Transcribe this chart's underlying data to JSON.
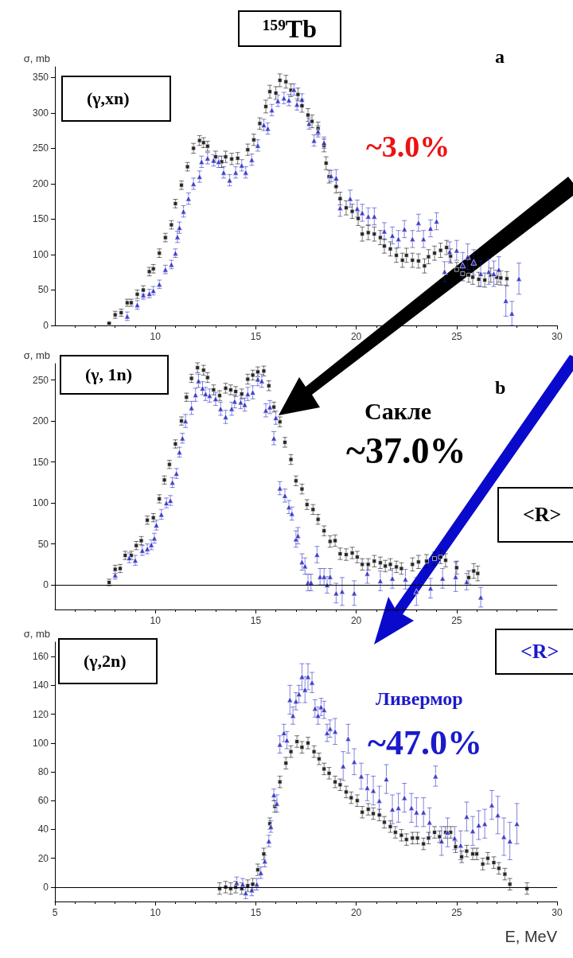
{
  "chart_data": [
    {
      "type": "scatter",
      "title": "¹⁵⁹Tb",
      "ylabel": "σ, mb",
      "xlim": [
        5,
        30
      ],
      "xticks": [
        10,
        15,
        20,
        25,
        30
      ],
      "ylim": [
        0,
        365
      ],
      "yticks": [
        0,
        50,
        100,
        150,
        200,
        250,
        300,
        350
      ],
      "annotations": [
        "(γ,xn)",
        "~3.0%",
        "a"
      ],
      "series": [
        {
          "color": "#000000",
          "marker": "square",
          "x": [
            7.7,
            8.0,
            8.3,
            8.6,
            8.8,
            9.1,
            9.4,
            9.7,
            9.9,
            10.2,
            10.5,
            10.8,
            11.0,
            11.3,
            11.6,
            11.9,
            12.2,
            12.4,
            12.6,
            13.0,
            13.3,
            13.5,
            13.8,
            14.1,
            14.6,
            14.9,
            15.2,
            15.5,
            15.7,
            16.0,
            16.2,
            16.5,
            16.75,
            17.1,
            17.3,
            17.6,
            17.8,
            18.1,
            18.4,
            18.5,
            18.65,
            19.0,
            19.2,
            19.5,
            19.8,
            20.1,
            20.3,
            20.6,
            20.9,
            21.2,
            21.4,
            21.7,
            22.0,
            22.3,
            22.5,
            22.8,
            23.1,
            23.4,
            23.6,
            23.9,
            24.2,
            24.5,
            24.7,
            25.0,
            25.3,
            25.6,
            25.8,
            26.1,
            26.4,
            26.7,
            27.0,
            27.2,
            27.5
          ],
          "values": [
            3,
            15,
            18,
            32,
            32,
            44,
            50,
            76,
            80,
            102,
            124,
            142,
            172,
            198,
            224,
            250,
            261,
            258,
            253,
            238,
            231,
            238,
            235,
            236,
            248,
            262,
            285,
            309,
            330,
            328,
            346,
            344,
            332,
            326,
            310,
            297,
            288,
            278,
            254,
            229,
            210,
            196,
            179,
            166,
            161,
            151,
            129,
            131,
            129,
            124,
            112,
            108,
            99,
            92,
            99,
            92,
            91,
            84,
            97,
            102,
            106,
            110,
            98,
            79,
            73,
            71,
            68,
            65,
            64,
            71,
            68,
            67,
            66
          ],
          "errors": [
            null,
            5,
            5,
            5,
            5,
            6,
            6,
            6,
            6,
            6,
            6,
            6,
            6,
            6,
            6,
            7,
            7,
            7,
            7,
            8,
            8,
            8,
            8,
            8,
            8,
            8,
            8,
            9,
            9,
            9,
            9,
            9,
            9,
            9,
            9,
            9,
            9,
            9,
            9,
            9,
            9,
            9,
            9,
            10,
            10,
            10,
            10,
            10,
            10,
            10,
            10,
            10,
            10,
            10,
            10,
            10,
            10,
            10,
            10,
            10,
            10,
            10,
            10,
            10,
            10,
            10,
            10,
            10,
            10,
            10,
            10,
            10,
            10
          ]
        },
        {
          "color": "#1f1fbf",
          "marker": "triangle",
          "x": [
            8.6,
            9.1,
            9.4,
            9.7,
            9.9,
            10.2,
            10.5,
            10.8,
            11.0,
            11.1,
            11.2,
            11.4,
            11.65,
            11.9,
            12.2,
            12.3,
            12.6,
            12.9,
            13.15,
            13.4,
            13.7,
            14.0,
            14.3,
            14.5,
            14.8,
            15.1,
            15.4,
            15.6,
            15.8,
            16.1,
            16.4,
            16.65,
            16.9,
            17.05,
            17.3,
            17.65,
            17.9,
            18.1,
            18.4,
            18.75,
            19.0,
            19.2,
            19.7,
            20.05,
            20.3,
            20.6,
            20.9,
            21.4,
            21.8,
            22.1,
            22.4,
            22.8,
            23.1,
            23.35,
            23.7,
            24.0,
            24.4,
            24.65,
            25.0,
            25.3,
            25.55,
            25.85,
            26.2,
            26.6,
            26.85,
            27.1,
            27.45,
            27.75,
            28.1
          ],
          "values": [
            13,
            29,
            43,
            45,
            49,
            58,
            79,
            86,
            102,
            125,
            138,
            161,
            179,
            200,
            210,
            231,
            236,
            233,
            231,
            216,
            205,
            216,
            226,
            216,
            234,
            254,
            283,
            278,
            304,
            317,
            321,
            318,
            333,
            312,
            319,
            285,
            261,
            274,
            258,
            211,
            208,
            166,
            179,
            165,
            159,
            154,
            154,
            133,
            127,
            122,
            136,
            122,
            145,
            122,
            137,
            147,
            76,
            104,
            106,
            85,
            97,
            89,
            73,
            76,
            73,
            79,
            35,
            17,
            66
          ],
          "errors": [
            6,
            6,
            6,
            6,
            6,
            6,
            6,
            6,
            6,
            8,
            8,
            8,
            8,
            8,
            8,
            8,
            8,
            8,
            8,
            8,
            8,
            8,
            8,
            8,
            8,
            8,
            8,
            8,
            8,
            8,
            8,
            8,
            8,
            8,
            8,
            8,
            8,
            8,
            8,
            8,
            12,
            12,
            12,
            12,
            12,
            12,
            12,
            12,
            12,
            12,
            12,
            12,
            12,
            12,
            12,
            12,
            14,
            14,
            14,
            18,
            18,
            18,
            18,
            18,
            18,
            18,
            22,
            17,
            22
          ]
        }
      ]
    },
    {
      "type": "scatter",
      "ylabel": "σ, mb",
      "xlim": [
        5,
        30
      ],
      "xticks": [
        10,
        15,
        20,
        25
      ],
      "ylim": [
        -30,
        270
      ],
      "yticks": [
        0,
        50,
        100,
        150,
        200,
        250
      ],
      "annotations": [
        "(γ, 1n)",
        "Сакле",
        "~37.0%",
        "b",
        "<R>"
      ],
      "ref_lines": [
        {
          "axis": "y",
          "value": 0,
          "color": "#000000"
        }
      ],
      "series": [
        {
          "color": "#000000",
          "marker": "square",
          "x": [
            7.7,
            8.0,
            8.25,
            8.5,
            8.8,
            9.05,
            9.3,
            9.6,
            9.9,
            10.2,
            10.45,
            10.7,
            11.0,
            11.3,
            11.55,
            11.8,
            12.1,
            12.4,
            12.6,
            12.9,
            13.2,
            13.5,
            13.75,
            14.0,
            14.3,
            14.6,
            14.85,
            15.1,
            15.4,
            15.65,
            15.9,
            16.2,
            16.45,
            16.75,
            17.0,
            17.3,
            17.55,
            17.85,
            18.1,
            18.4,
            18.7,
            18.95,
            19.2,
            19.5,
            19.8,
            20.05,
            20.3,
            20.6,
            20.9,
            21.2,
            21.45,
            21.7,
            22.0,
            22.25,
            22.8,
            23.1,
            23.5,
            23.9,
            24.2,
            24.45,
            25.0,
            25.6,
            25.85,
            26.05
          ],
          "values": [
            3,
            19,
            20,
            36,
            36,
            48,
            54,
            79,
            82,
            105,
            128,
            147,
            172,
            200,
            229,
            252,
            265,
            262,
            253,
            238,
            231,
            240,
            238,
            236,
            233,
            251,
            256,
            260,
            261,
            243,
            217,
            199,
            174,
            153,
            127,
            117,
            98,
            92,
            80,
            66,
            53,
            54,
            38,
            37,
            39,
            34,
            25,
            25,
            29,
            27,
            23,
            25,
            22,
            20,
            25,
            28,
            29,
            32,
            34,
            30,
            21,
            9,
            17,
            14
          ],
          "errors": [
            4,
            5,
            5,
            5,
            5,
            5,
            5,
            5,
            5,
            5,
            5,
            5,
            5,
            5,
            5,
            5,
            6,
            6,
            6,
            6,
            6,
            6,
            6,
            6,
            6,
            6,
            6,
            6,
            6,
            6,
            6,
            6,
            6,
            6,
            6,
            6,
            6,
            6,
            6,
            6,
            7,
            7,
            7,
            7,
            7,
            7,
            7,
            7,
            7,
            7,
            7,
            7,
            7,
            7,
            8,
            8,
            8,
            8,
            8,
            8,
            8,
            8,
            9,
            9
          ]
        },
        {
          "color": "#1f1fbf",
          "marker": "triangle",
          "x": [
            8.0,
            8.7,
            9.0,
            9.35,
            9.6,
            9.8,
            9.95,
            10.05,
            10.3,
            10.55,
            10.75,
            10.85,
            11.05,
            11.2,
            11.35,
            11.5,
            11.8,
            12.0,
            12.15,
            12.35,
            12.5,
            12.7,
            13.0,
            13.25,
            13.5,
            13.8,
            13.95,
            14.25,
            14.45,
            14.6,
            14.85,
            15.1,
            15.3,
            15.5,
            15.7,
            15.9,
            16.0,
            16.2,
            16.45,
            16.65,
            16.8,
            17.0,
            17.1,
            17.3,
            17.45,
            17.6,
            17.75,
            18.05,
            18.2,
            18.4,
            18.55,
            18.7,
            19.0,
            19.3,
            19.9,
            20.55,
            21.2,
            21.8,
            22.45,
            23.0,
            23.7,
            24.3,
            24.95,
            25.5,
            26.2
          ],
          "values": [
            12,
            33,
            30,
            42,
            44,
            49,
            57,
            73,
            86,
            100,
            103,
            125,
            136,
            162,
            179,
            200,
            216,
            232,
            249,
            240,
            233,
            231,
            227,
            215,
            205,
            215,
            224,
            223,
            220,
            233,
            235,
            251,
            249,
            213,
            217,
            179,
            204,
            118,
            109,
            95,
            87,
            56,
            60,
            28,
            23,
            3,
            3,
            37,
            10,
            10,
            0,
            10,
            -10,
            -8,
            -10,
            14,
            5,
            8,
            7,
            -8,
            -4,
            8,
            10,
            4,
            -15
          ],
          "errors": [
            5,
            6,
            6,
            6,
            6,
            6,
            6,
            6,
            6,
            6,
            6,
            6,
            6,
            6,
            6,
            8,
            8,
            8,
            8,
            8,
            8,
            8,
            8,
            8,
            8,
            8,
            8,
            8,
            8,
            8,
            8,
            8,
            8,
            8,
            8,
            8,
            8,
            8,
            8,
            8,
            8,
            10,
            10,
            10,
            10,
            10,
            10,
            10,
            10,
            10,
            10,
            10,
            12,
            17,
            15,
            12,
            12,
            12,
            12,
            17,
            12,
            12,
            18,
            10,
            12
          ]
        }
      ]
    },
    {
      "type": "scatter",
      "ylabel": "σ, mb",
      "xlabel": "E, MeV",
      "xlim": [
        5,
        30
      ],
      "xticks": [
        5,
        10,
        15,
        20,
        25,
        30
      ],
      "ylim": [
        -10,
        170
      ],
      "yticks": [
        0,
        20,
        40,
        60,
        80,
        100,
        120,
        140,
        160
      ],
      "annotations": [
        "(γ,2n)",
        "Ливермор",
        "~47.0%",
        "<R>"
      ],
      "ref_lines": [
        {
          "axis": "y",
          "value": 0,
          "color": "#000000"
        }
      ],
      "series": [
        {
          "color": "#000000",
          "marker": "square",
          "x": [
            13.2,
            13.5,
            13.75,
            14.0,
            14.3,
            14.6,
            14.85,
            15.1,
            15.4,
            15.7,
            15.95,
            16.2,
            16.5,
            16.75,
            17.05,
            17.3,
            17.6,
            17.9,
            18.15,
            18.4,
            18.65,
            18.95,
            19.2,
            19.5,
            19.75,
            20.05,
            20.3,
            20.6,
            20.85,
            21.15,
            21.4,
            21.7,
            21.95,
            22.25,
            22.5,
            22.8,
            23.05,
            23.35,
            23.6,
            23.9,
            24.15,
            24.45,
            24.7,
            24.95,
            25.25,
            25.5,
            25.8,
            26.0,
            26.3,
            26.55,
            26.85,
            27.1,
            27.4,
            27.65,
            28.5
          ],
          "values": [
            -1,
            0,
            -1,
            0,
            -1,
            1,
            2,
            12,
            23,
            44,
            56,
            73,
            86,
            94,
            101,
            97,
            100,
            94,
            89,
            82,
            79,
            73,
            71,
            66,
            62,
            60,
            52,
            54,
            51,
            50,
            45,
            42,
            38,
            36,
            33,
            34,
            34,
            30,
            34,
            38,
            35,
            38,
            38,
            28,
            21,
            25,
            23,
            23,
            16,
            20,
            17,
            13,
            9,
            2,
            -1
          ],
          "errors": [
            4,
            4,
            4,
            4,
            4,
            4,
            4,
            4,
            4,
            4,
            4,
            4,
            4,
            4,
            4,
            4,
            4,
            4,
            4,
            4,
            4,
            4,
            4,
            4,
            4,
            4,
            4,
            4,
            4,
            4,
            4,
            4,
            4,
            4,
            4,
            4,
            4,
            4,
            4,
            4,
            4,
            4,
            4,
            4,
            4,
            4,
            4,
            4,
            4,
            4,
            4,
            4,
            4,
            4,
            4
          ]
        },
        {
          "color": "#1f1fbf",
          "marker": "triangle",
          "x": [
            14.05,
            14.35,
            14.5,
            14.8,
            15.05,
            15.25,
            15.45,
            15.65,
            15.75,
            15.9,
            16.05,
            16.2,
            16.4,
            16.55,
            16.7,
            16.85,
            17.0,
            17.15,
            17.3,
            17.45,
            17.6,
            17.8,
            17.95,
            18.1,
            18.25,
            18.4,
            18.55,
            18.7,
            18.95,
            19.35,
            19.6,
            19.9,
            20.25,
            20.55,
            20.85,
            21.15,
            21.5,
            21.8,
            22.1,
            22.4,
            22.75,
            23.0,
            23.35,
            23.65,
            23.95,
            24.25,
            24.55,
            24.9,
            25.2,
            25.5,
            25.8,
            26.1,
            26.4,
            26.75,
            27.05,
            27.35,
            27.65,
            28.0
          ],
          "values": [
            3,
            2,
            -4,
            -2,
            2,
            10,
            18,
            32,
            42,
            64,
            58,
            99,
            107,
            102,
            130,
            119,
            129,
            134,
            146,
            137,
            146,
            142,
            124,
            119,
            125,
            123,
            107,
            110,
            108,
            84,
            103,
            87,
            77,
            69,
            67,
            60,
            75,
            54,
            55,
            62,
            55,
            52,
            52,
            45,
            77,
            32,
            38,
            34,
            29,
            49,
            39,
            43,
            44,
            57,
            50,
            35,
            32,
            44
          ],
          "errors": [
            4,
            4,
            4,
            4,
            4,
            4,
            4,
            4,
            4,
            4,
            6,
            6,
            6,
            6,
            10,
            6,
            6,
            6,
            9,
            9,
            9,
            7,
            6,
            6,
            6,
            6,
            6,
            6,
            9,
            10,
            10,
            9,
            9,
            9,
            10,
            10,
            10,
            10,
            10,
            10,
            10,
            10,
            10,
            10,
            7,
            10,
            10,
            8,
            10,
            10,
            10,
            10,
            10,
            10,
            13,
            13,
            13,
            14
          ]
        }
      ]
    }
  ]
}
